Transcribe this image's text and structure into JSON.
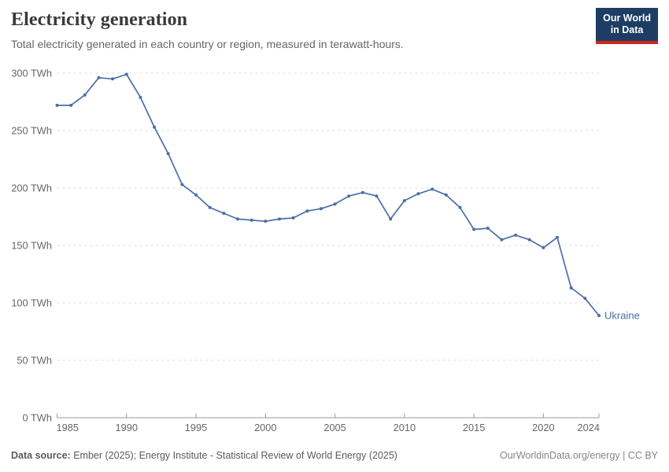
{
  "header": {
    "title": "Electricity generation",
    "subtitle": "Total electricity generated in each country or region, measured in terawatt-hours.",
    "logo": {
      "line1": "Our World",
      "line2": "in Data"
    }
  },
  "chart_data": {
    "type": "line",
    "title": "Electricity generation",
    "entity": "Ukraine",
    "unit": "TWh",
    "x": [
      1985,
      1986,
      1987,
      1988,
      1989,
      1990,
      1991,
      1992,
      1993,
      1994,
      1995,
      1996,
      1997,
      1998,
      1999,
      2000,
      2001,
      2002,
      2003,
      2004,
      2005,
      2006,
      2007,
      2008,
      2009,
      2010,
      2011,
      2012,
      2013,
      2014,
      2015,
      2016,
      2017,
      2018,
      2019,
      2020,
      2021,
      2022,
      2023,
      2024
    ],
    "series": [
      {
        "name": "Ukraine",
        "values": [
          272,
          272,
          281,
          296,
          295,
          299,
          279,
          253,
          230,
          203,
          194,
          183,
          178,
          173,
          172,
          171,
          173,
          174,
          180,
          182,
          186,
          193,
          196,
          193,
          173,
          189,
          195,
          199,
          194,
          183,
          164,
          165,
          155,
          159,
          155,
          148,
          157,
          113,
          104,
          89
        ]
      }
    ],
    "xlabel": "",
    "ylabel": "",
    "ylim": [
      0,
      300
    ],
    "yticks": [
      0,
      50,
      100,
      150,
      200,
      250,
      300
    ],
    "ytick_suffix": " TWh",
    "xticks": [
      1985,
      1990,
      1995,
      2000,
      2005,
      2010,
      2015,
      2020,
      2024
    ],
    "grid": true,
    "legend_position": "end-of-line-label",
    "marker": "circle"
  },
  "footer": {
    "source_label": "Data source:",
    "source_text": " Ember (2025); Energy Institute - Statistical Review of World Energy (2025)",
    "credit": "OurWorldinData.org/energy | CC BY"
  },
  "colors": {
    "line": "#4C6EA8",
    "grid": "#dcdcdc",
    "axis": "#999999",
    "tick_text": "#666666",
    "logo_bg": "#1d3d63",
    "logo_red": "#ce261e"
  }
}
